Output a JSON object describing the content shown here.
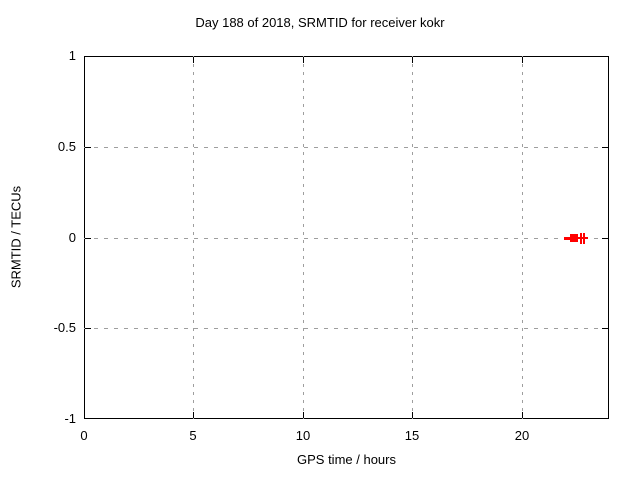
{
  "chart_data": {
    "type": "scatter",
    "title": "Day 188 of 2018, SRMTID for receiver kokr",
    "xlabel": "GPS time / hours",
    "ylabel": "SRMTID / TECUs",
    "xlim": [
      0,
      24
    ],
    "ylim": [
      -1,
      1
    ],
    "xticks": [
      0,
      5,
      10,
      15,
      20
    ],
    "yticks": [
      -1,
      -0.5,
      0,
      0.5,
      1
    ],
    "grid": true,
    "grid_color": "#9e9e9e",
    "background": "#ffffff",
    "border_color": "#000000",
    "legend": "none",
    "series": [
      {
        "name": "srmtid-point-dash",
        "marker": "dash",
        "color": "#ff0000",
        "points": [
          {
            "x": 22.1,
            "y": 0
          }
        ]
      },
      {
        "name": "srmtid-point-filled-square",
        "marker": "filled-square",
        "color": "#ff0000",
        "points": [
          {
            "x": 22.4,
            "y": 0
          }
        ]
      },
      {
        "name": "srmtid-points-plus",
        "marker": "plus",
        "color": "#ff0000",
        "points": [
          {
            "x": 22.7,
            "y": 0
          },
          {
            "x": 22.85,
            "y": 0
          }
        ]
      }
    ]
  }
}
